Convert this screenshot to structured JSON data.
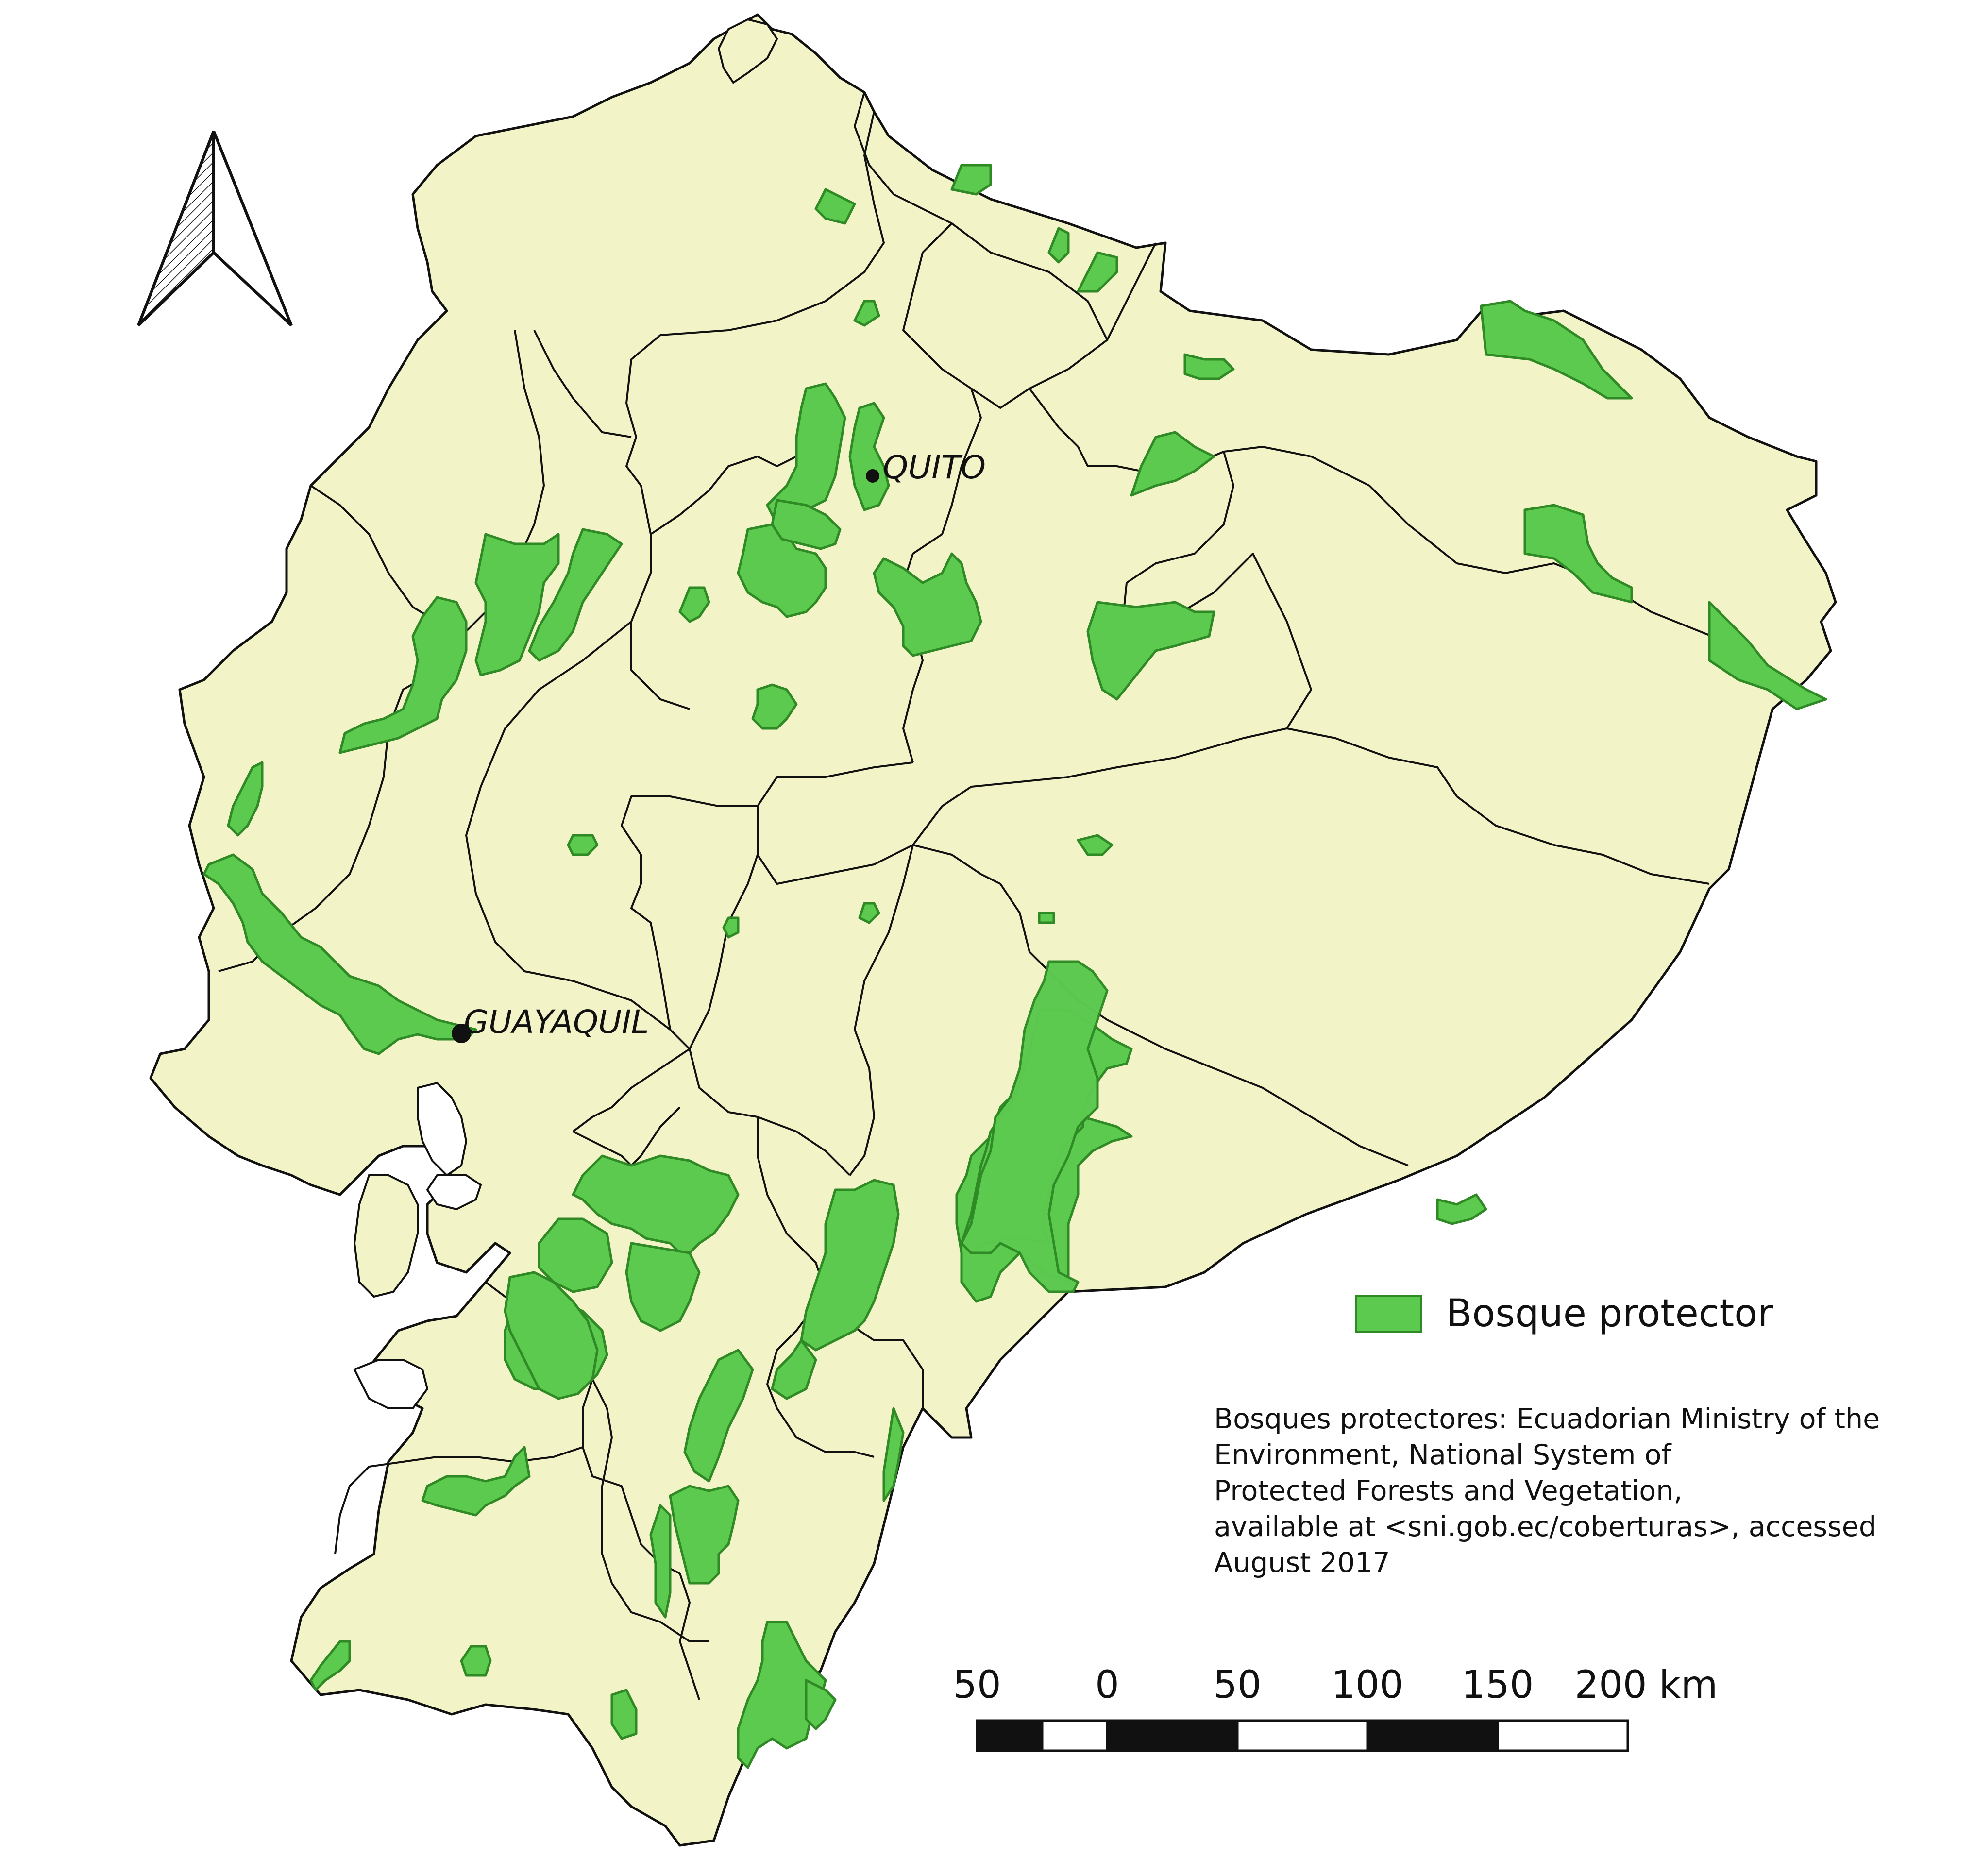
{
  "map": {
    "cities": [
      {
        "name": "QUITO"
      },
      {
        "name": "GUAYAQUIL"
      }
    ],
    "colors": {
      "land": "#f3f3c8",
      "forest": "#5cc94f",
      "forest_border": "#2f8a25",
      "boundary": "#111111"
    }
  },
  "legend": {
    "items": [
      {
        "label": "Bosque protector",
        "color": "#5cc94f"
      }
    ]
  },
  "source": {
    "lines": [
      "Bosques protectores: Ecuadorian Ministry of the",
      "Environment, National System of",
      "Protected Forests and Vegetation,",
      "available at <sni.gob.ec/coberturas>, accessed",
      "August 2017"
    ]
  },
  "scale_bar": {
    "labels": [
      "50",
      "0",
      "50",
      "100",
      "150",
      "200 km"
    ]
  },
  "north_arrow": {
    "icon": "north-arrow-icon"
  }
}
